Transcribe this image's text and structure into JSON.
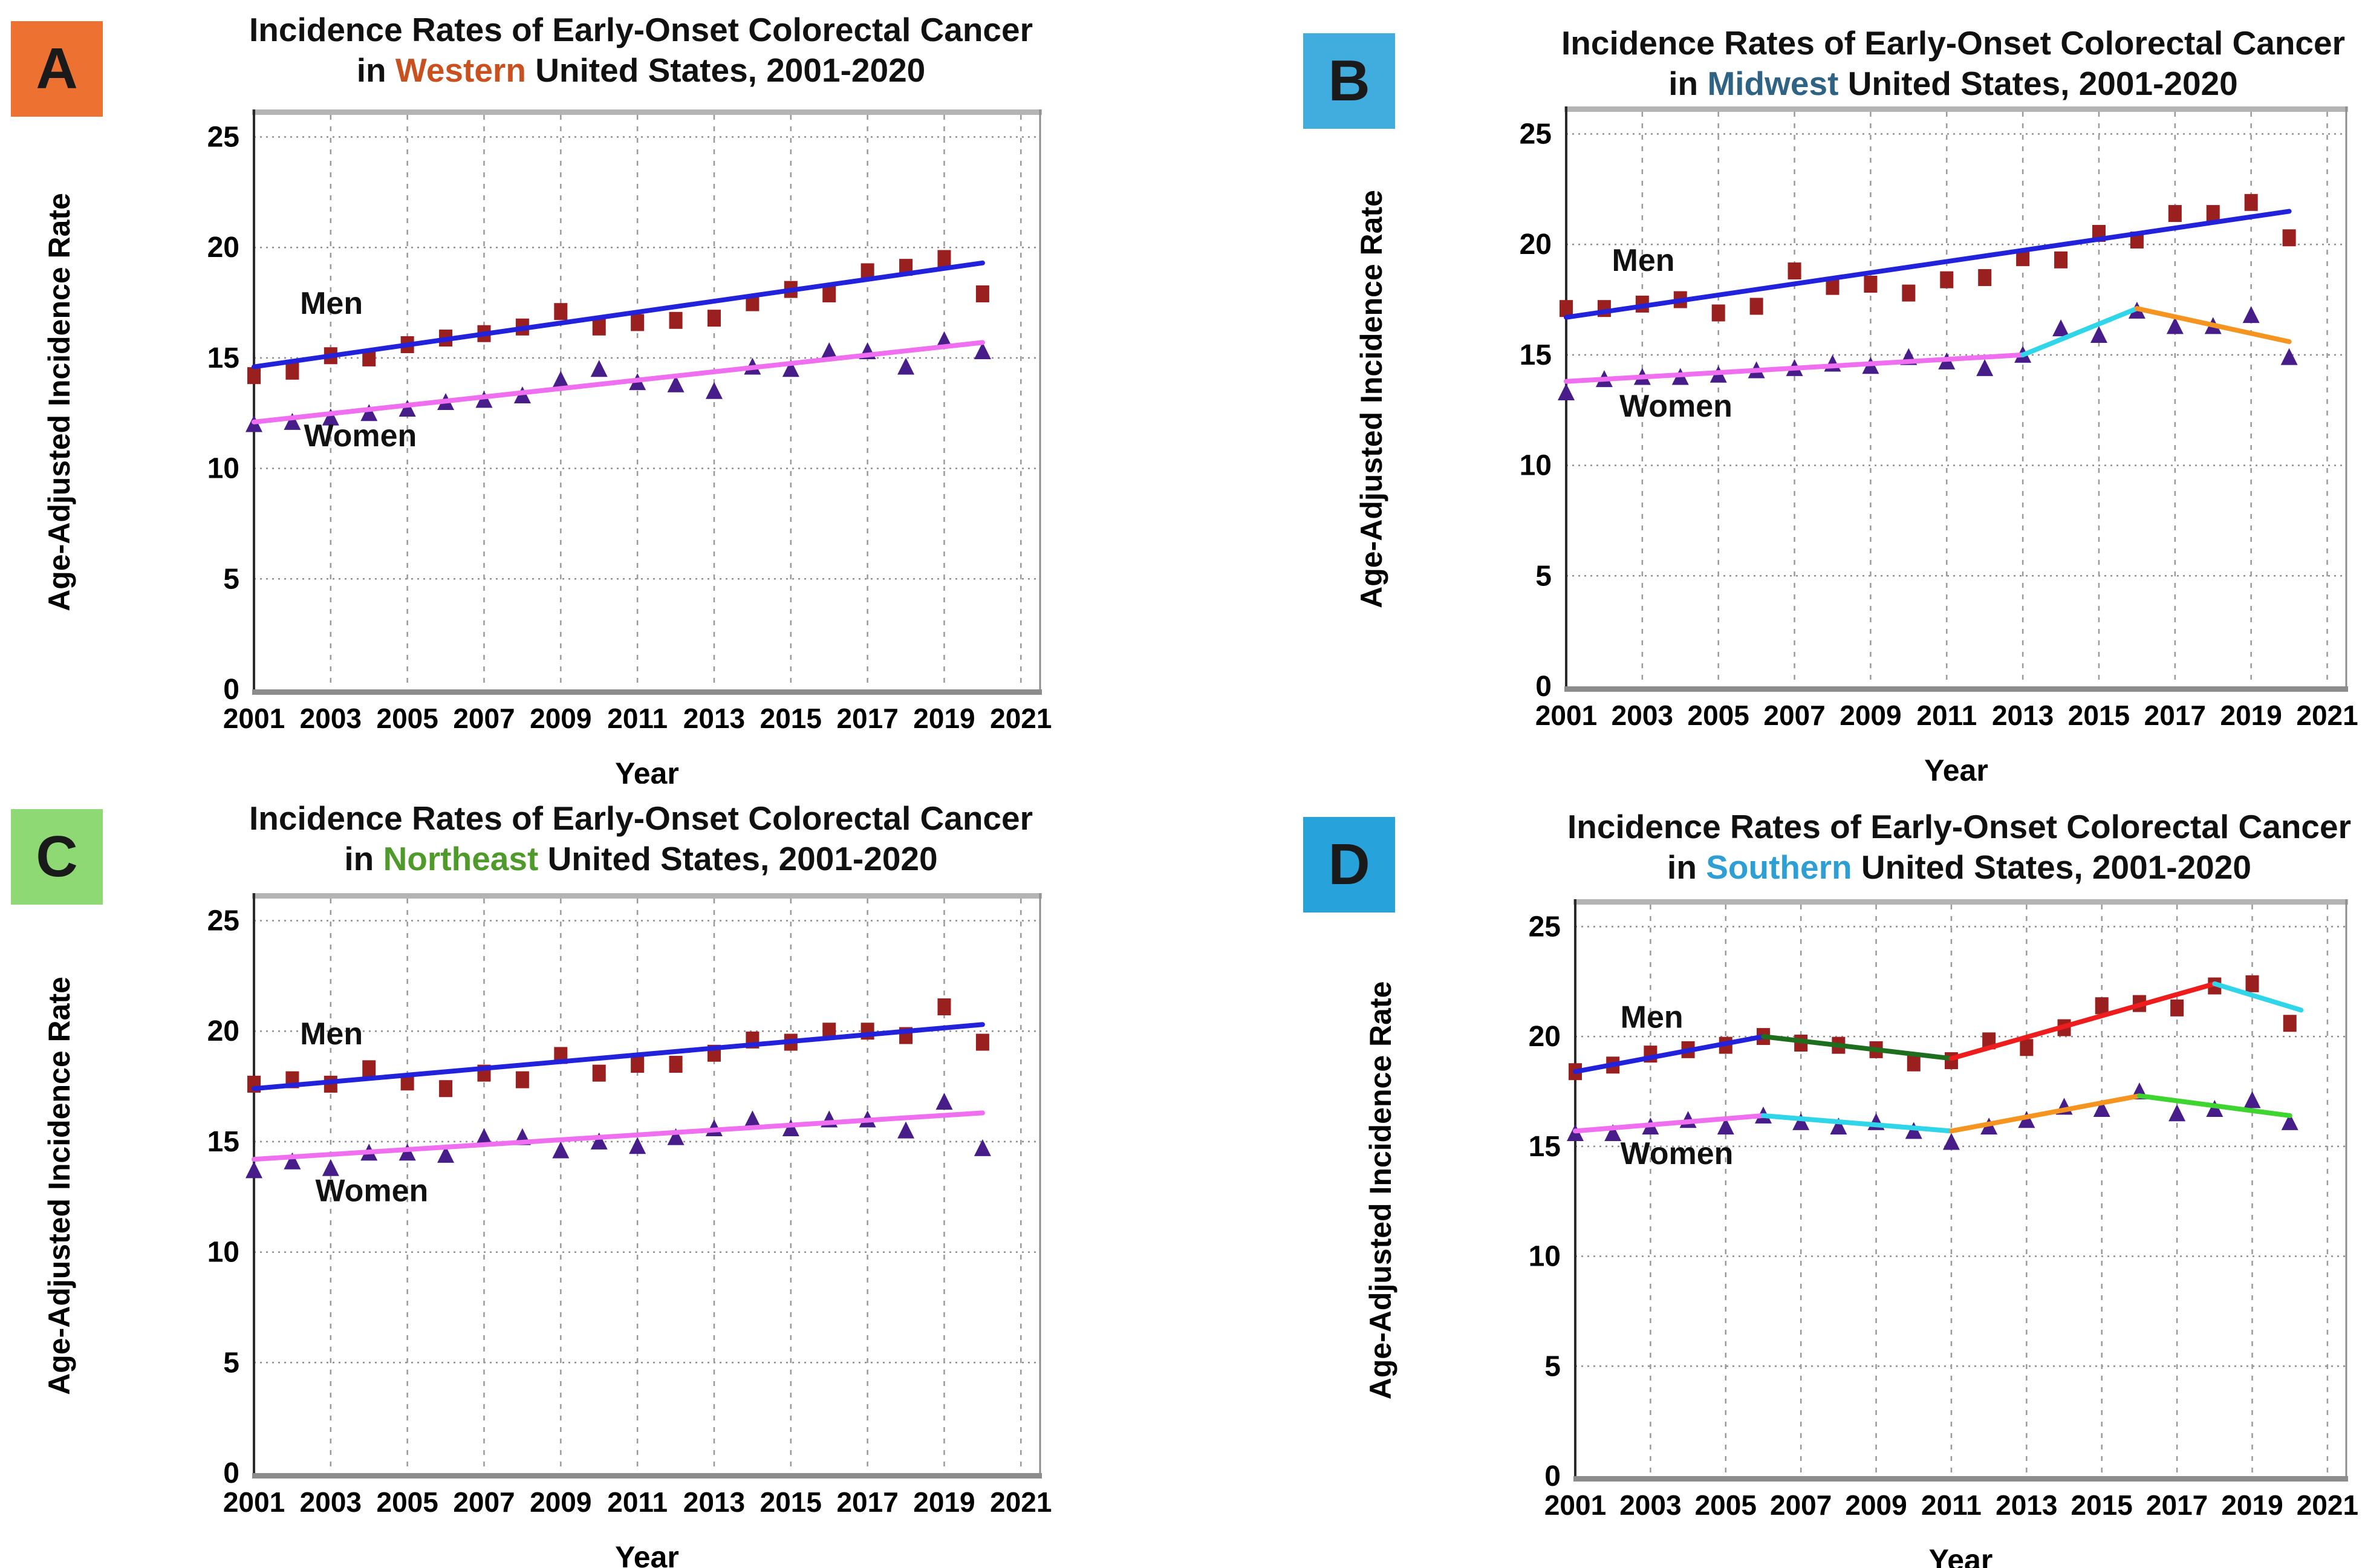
{
  "figure": {
    "y_axis_label": "Age-Adjusted Incidence Rate",
    "x_axis_label": "Year"
  },
  "panels": [
    {
      "id": "A",
      "badge": "A",
      "badge_color": "#ED7131",
      "title_line1": "Incidence Rates of Early-Onset Colorectal Cancer",
      "title_in": "in",
      "region": "Western",
      "region_color": "#C8511F",
      "title_suffix": "United States, 2001-2020"
    },
    {
      "id": "B",
      "badge": "B",
      "badge_color": "#41ACDE",
      "title_line1": "Incidence Rates of Early-Onset Colorectal Cancer",
      "title_in": "in",
      "region": "Midwest",
      "region_color": "#2F6384",
      "title_suffix": "United States, 2001-2020"
    },
    {
      "id": "C",
      "badge": "C",
      "badge_color": "#8ED973",
      "title_line1": "Incidence Rates of Early-Onset Colorectal Cancer",
      "title_in": "in",
      "region": "Northeast",
      "region_color": "#4E9A2A",
      "title_suffix": "United States, 2001-2020"
    },
    {
      "id": "D",
      "badge": "D",
      "badge_color": "#28A2DB",
      "title_line1": "Incidence Rates of Early-Onset Colorectal Cancer",
      "title_in": "in",
      "region": "Southern",
      "region_color": "#2E9FD4",
      "title_suffix": "United States, 2001-2020"
    }
  ],
  "chart_data": [
    {
      "panel": "A",
      "type": "scatter",
      "region": "Western",
      "xlabel": "Year",
      "ylabel": "Age-Adjusted Incidence Rate",
      "xlim": [
        2001,
        2021.5
      ],
      "ylim": [
        0,
        26
      ],
      "x_ticks": [
        2001,
        2003,
        2005,
        2007,
        2009,
        2011,
        2013,
        2015,
        2017,
        2019,
        2021
      ],
      "y_ticks": [
        0,
        5,
        10,
        15,
        20,
        25
      ],
      "x": [
        2001,
        2002,
        2003,
        2004,
        2005,
        2006,
        2007,
        2008,
        2009,
        2010,
        2011,
        2012,
        2013,
        2014,
        2015,
        2016,
        2017,
        2018,
        2019,
        2020
      ],
      "series": [
        {
          "name": "Men",
          "marker": "square",
          "color": "#9A1F1F",
          "label_pos": [
            2002.2,
            17.0
          ],
          "values": [
            14.2,
            14.4,
            15.1,
            15.0,
            15.6,
            15.9,
            16.1,
            16.4,
            17.1,
            16.4,
            16.6,
            16.7,
            16.8,
            17.5,
            18.1,
            17.9,
            18.9,
            19.1,
            19.5,
            17.9
          ],
          "trend_segments": [
            {
              "x1": 2001,
              "y1": 14.6,
              "x2": 2020,
              "y2": 19.3,
              "color": "#2222DD"
            }
          ]
        },
        {
          "name": "Women",
          "marker": "triangle",
          "color": "#471D8A",
          "label_pos": [
            2002.3,
            11.0
          ],
          "values": [
            12.0,
            12.1,
            12.3,
            12.5,
            12.7,
            13.0,
            13.1,
            13.3,
            14.0,
            14.5,
            13.9,
            13.8,
            13.5,
            14.6,
            14.5,
            15.3,
            15.3,
            14.6,
            15.8,
            15.3
          ],
          "trend_segments": [
            {
              "x1": 2001,
              "y1": 12.1,
              "x2": 2020,
              "y2": 15.7,
              "color": "#F06EF0"
            }
          ]
        }
      ]
    },
    {
      "panel": "B",
      "type": "scatter",
      "region": "Midwest",
      "xlabel": "Year",
      "ylabel": "Age-Adjusted Incidence Rate",
      "xlim": [
        2001,
        2021.5
      ],
      "ylim": [
        0,
        26
      ],
      "x_ticks": [
        2001,
        2003,
        2005,
        2007,
        2009,
        2011,
        2013,
        2015,
        2017,
        2019,
        2021
      ],
      "y_ticks": [
        0,
        5,
        10,
        15,
        20,
        25
      ],
      "x": [
        2001,
        2002,
        2003,
        2004,
        2005,
        2006,
        2007,
        2008,
        2009,
        2010,
        2011,
        2012,
        2013,
        2014,
        2015,
        2016,
        2017,
        2018,
        2019,
        2020
      ],
      "series": [
        {
          "name": "Men",
          "marker": "square",
          "color": "#9A1F1F",
          "label_pos": [
            2002.2,
            18.8
          ],
          "values": [
            17.1,
            17.1,
            17.3,
            17.5,
            16.9,
            17.2,
            18.8,
            18.1,
            18.2,
            17.8,
            18.4,
            18.5,
            19.4,
            19.3,
            20.5,
            20.2,
            21.4,
            21.4,
            21.9,
            20.3
          ],
          "trend_segments": [
            {
              "x1": 2001,
              "y1": 16.7,
              "x2": 2020,
              "y2": 21.5,
              "color": "#2222DD"
            }
          ]
        },
        {
          "name": "Women",
          "marker": "triangle",
          "color": "#471D8A",
          "label_pos": [
            2002.4,
            12.2
          ],
          "values": [
            13.3,
            13.9,
            14.0,
            14.0,
            14.1,
            14.3,
            14.4,
            14.6,
            14.5,
            14.9,
            14.7,
            14.4,
            15.0,
            16.2,
            15.9,
            17.0,
            16.3,
            16.3,
            16.8,
            14.9
          ],
          "trend_segments": [
            {
              "x1": 2001,
              "y1": 13.8,
              "x2": 2013,
              "y2": 15.0,
              "color": "#F06EF0"
            },
            {
              "x1": 2013,
              "y1": 15.0,
              "x2": 2016,
              "y2": 17.1,
              "color": "#2FD5E8"
            },
            {
              "x1": 2016,
              "y1": 17.1,
              "x2": 2020,
              "y2": 15.6,
              "color": "#F5941E"
            }
          ]
        }
      ]
    },
    {
      "panel": "C",
      "type": "scatter",
      "region": "Northeast",
      "xlabel": "Year",
      "ylabel": "Age-Adjusted Incidence Rate",
      "xlim": [
        2001,
        2021.5
      ],
      "ylim": [
        0,
        26
      ],
      "x_ticks": [
        2001,
        2003,
        2005,
        2007,
        2009,
        2011,
        2013,
        2015,
        2017,
        2019,
        2021
      ],
      "y_ticks": [
        0,
        5,
        10,
        15,
        20,
        25
      ],
      "x": [
        2001,
        2002,
        2003,
        2004,
        2005,
        2006,
        2007,
        2008,
        2009,
        2010,
        2011,
        2012,
        2013,
        2014,
        2015,
        2016,
        2017,
        2018,
        2019,
        2020
      ],
      "series": [
        {
          "name": "Men",
          "marker": "square",
          "color": "#9A1F1F",
          "label_pos": [
            2002.2,
            19.4
          ],
          "values": [
            17.6,
            17.8,
            17.6,
            18.3,
            17.7,
            17.4,
            18.1,
            17.8,
            18.9,
            18.1,
            18.5,
            18.5,
            19.0,
            19.6,
            19.5,
            20.0,
            20.0,
            19.8,
            21.1,
            19.5
          ],
          "trend_segments": [
            {
              "x1": 2001,
              "y1": 17.4,
              "x2": 2020,
              "y2": 20.3,
              "color": "#2222DD"
            }
          ]
        },
        {
          "name": "Women",
          "marker": "triangle",
          "color": "#471D8A",
          "label_pos": [
            2002.6,
            12.3
          ],
          "values": [
            13.7,
            14.1,
            13.8,
            14.5,
            14.5,
            14.4,
            15.2,
            15.2,
            14.6,
            15.0,
            14.8,
            15.2,
            15.6,
            16.0,
            15.6,
            16.0,
            16.0,
            15.5,
            16.8,
            14.7
          ],
          "trend_segments": [
            {
              "x1": 2001,
              "y1": 14.2,
              "x2": 2020,
              "y2": 16.3,
              "color": "#F06EF0"
            }
          ]
        }
      ]
    },
    {
      "panel": "D",
      "type": "scatter",
      "region": "Southern",
      "xlabel": "Year",
      "ylabel": "Age-Adjusted Incidence Rate",
      "xlim": [
        2001,
        2021.5
      ],
      "ylim": [
        0,
        26
      ],
      "x_ticks": [
        2001,
        2003,
        2005,
        2007,
        2009,
        2011,
        2013,
        2015,
        2017,
        2019,
        2021
      ],
      "y_ticks": [
        0,
        5,
        10,
        15,
        20,
        25
      ],
      "x": [
        2001,
        2002,
        2003,
        2004,
        2005,
        2006,
        2007,
        2008,
        2009,
        2010,
        2011,
        2012,
        2013,
        2014,
        2015,
        2016,
        2017,
        2018,
        2019,
        2020
      ],
      "series": [
        {
          "name": "Men",
          "marker": "square",
          "color": "#9A1F1F",
          "label_pos": [
            2002.2,
            20.4
          ],
          "values": [
            18.4,
            18.7,
            19.2,
            19.4,
            19.6,
            20.0,
            19.7,
            19.6,
            19.4,
            18.8,
            18.9,
            19.8,
            19.5,
            20.4,
            21.4,
            21.5,
            21.3,
            22.3,
            22.4,
            20.6
          ],
          "trend_segments": [
            {
              "x1": 2001,
              "y1": 18.4,
              "x2": 2006,
              "y2": 20.0,
              "color": "#2222DD"
            },
            {
              "x1": 2006,
              "y1": 20.0,
              "x2": 2011,
              "y2": 19.0,
              "color": "#1D6E1D"
            },
            {
              "x1": 2011,
              "y1": 19.0,
              "x2": 2018,
              "y2": 22.4,
              "color": "#EE1C1C"
            },
            {
              "x1": 2018,
              "y1": 22.4,
              "x2": 2020.3,
              "y2": 21.2,
              "color": "#2FD5E8"
            }
          ]
        },
        {
          "name": "Women",
          "marker": "triangle",
          "color": "#471D8A",
          "label_pos": [
            2002.2,
            14.2
          ],
          "values": [
            15.6,
            15.6,
            15.9,
            16.2,
            15.9,
            16.4,
            16.1,
            15.9,
            16.1,
            15.7,
            15.2,
            15.9,
            16.2,
            16.8,
            16.7,
            17.5,
            16.5,
            16.7,
            17.1,
            16.1
          ],
          "trend_segments": [
            {
              "x1": 2001,
              "y1": 15.7,
              "x2": 2006,
              "y2": 16.4,
              "color": "#F06EF0"
            },
            {
              "x1": 2006,
              "y1": 16.4,
              "x2": 2011,
              "y2": 15.7,
              "color": "#2FD5E8"
            },
            {
              "x1": 2011,
              "y1": 15.7,
              "x2": 2016,
              "y2": 17.3,
              "color": "#F5941E"
            },
            {
              "x1": 2016,
              "y1": 17.3,
              "x2": 2020,
              "y2": 16.4,
              "color": "#3ED62E"
            }
          ]
        }
      ]
    }
  ]
}
